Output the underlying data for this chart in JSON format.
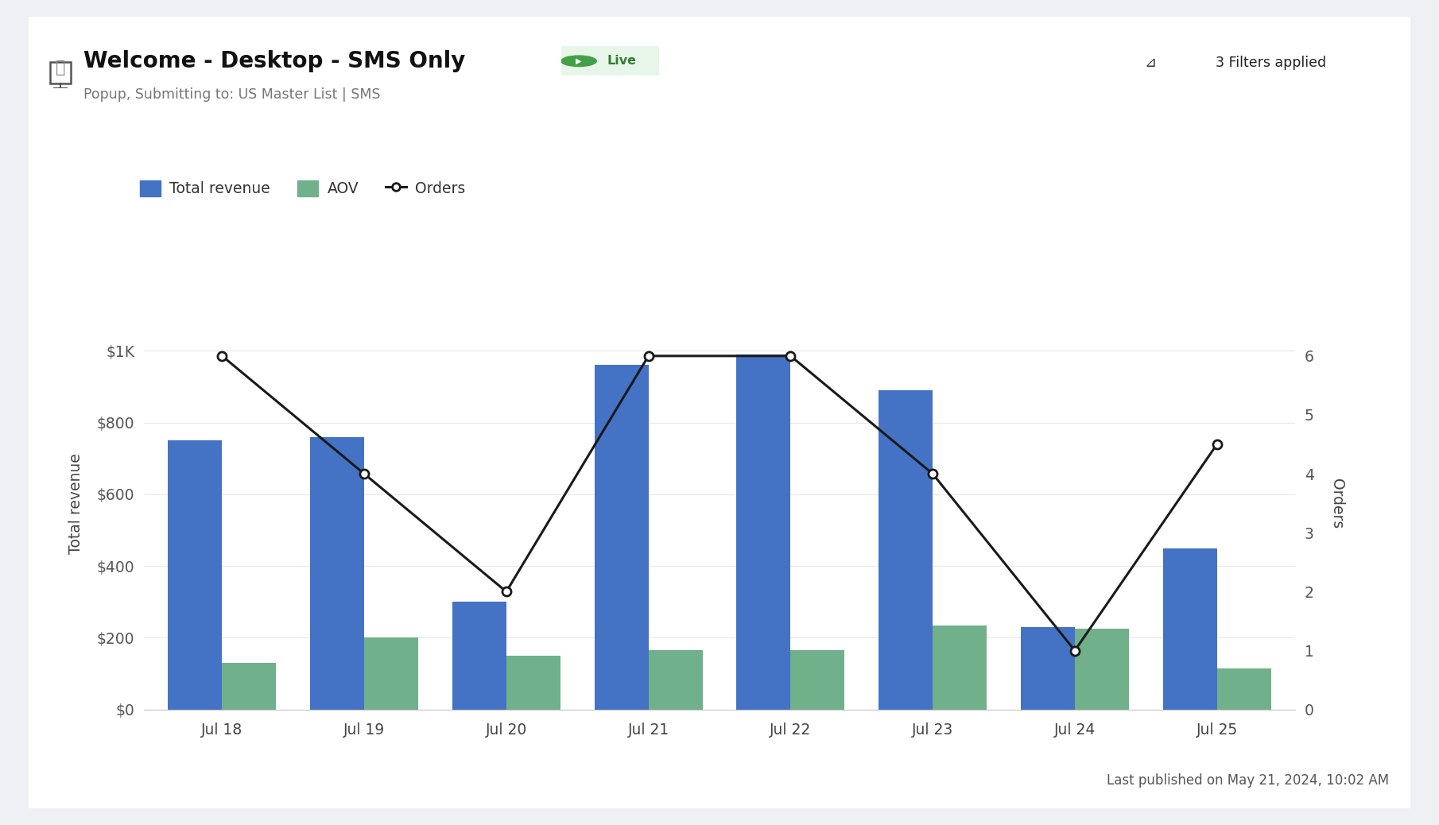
{
  "dates": [
    "Jul 18",
    "Jul 19",
    "Jul 20",
    "Jul 21",
    "Jul 22",
    "Jul 23",
    "Jul 24",
    "Jul 25"
  ],
  "total_revenue": [
    750,
    760,
    300,
    960,
    990,
    890,
    230,
    450
  ],
  "aov": [
    130,
    200,
    150,
    165,
    165,
    235,
    225,
    115
  ],
  "orders": [
    6,
    4,
    2,
    6,
    6,
    4,
    1,
    4.5
  ],
  "bar_color_blue": "#4472c4",
  "bar_color_green": "#70b08a",
  "line_color": "#1a1a1a",
  "background_color": "#eef0f3",
  "card_color": "#ffffff",
  "title": "Welcome - Desktop - SMS Only",
  "subtitle": "Popup, Submitting to: US Master List | SMS",
  "ylabel_left": "Total revenue",
  "ylabel_right": "Orders",
  "ylim_left": [
    0,
    1150
  ],
  "ylim_right": [
    0,
    7
  ],
  "yticks_left": [
    0,
    200,
    400,
    600,
    800,
    1000
  ],
  "ytick_labels_left": [
    "$0",
    "$200",
    "$400",
    "$600",
    "$800",
    "$1K"
  ],
  "yticks_right": [
    0,
    1,
    2,
    3,
    4,
    5,
    6
  ],
  "legend_labels": [
    "Total revenue",
    "AOV",
    "Orders"
  ],
  "footer_text": "Last published on May 21, 2024, 10:02 AM",
  "live_text": "Live",
  "live_bg": "#e8f5e9",
  "live_dot": "#43a047",
  "live_text_color": "#2e7d32",
  "filter_text": "3 Filters applied",
  "monitor_icon": "⎕"
}
